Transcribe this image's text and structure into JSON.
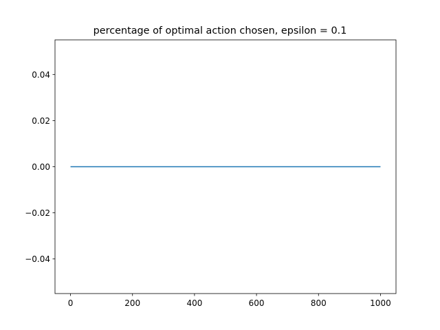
{
  "chart_data": {
    "type": "line",
    "title": "percentage of optimal action chosen, epsilon = 0.1",
    "xlabel": "",
    "ylabel": "",
    "xlim": [
      -50,
      1050
    ],
    "ylim": [
      -0.055,
      0.055
    ],
    "x_ticks": [
      0,
      200,
      400,
      600,
      800,
      1000
    ],
    "y_ticks": [
      -0.04,
      -0.02,
      0.0,
      0.02,
      0.04
    ],
    "x_tick_labels": [
      "0",
      "200",
      "400",
      "600",
      "800",
      "1000"
    ],
    "y_tick_labels": [
      "−0.04",
      "−0.02",
      "0.00",
      "0.02",
      "0.04"
    ],
    "grid": false,
    "series": [
      {
        "color": "#1f77b4",
        "x": [
          0,
          1000
        ],
        "y": [
          0.0,
          0.0
        ]
      }
    ]
  }
}
